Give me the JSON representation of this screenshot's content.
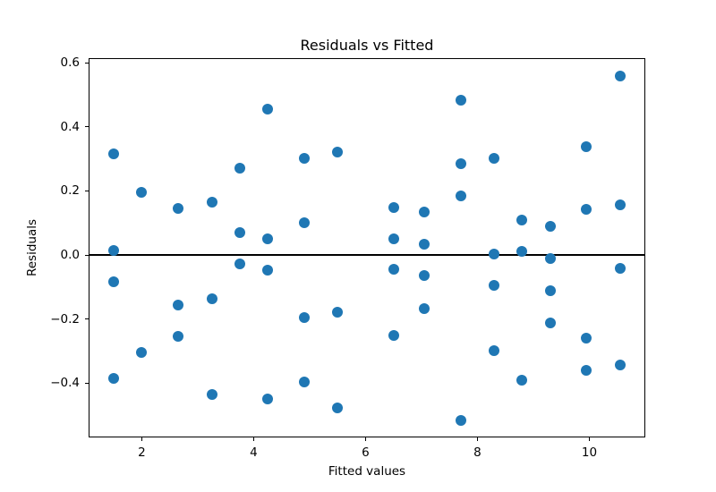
{
  "figure": {
    "background": "#ffffff"
  },
  "chart_data": {
    "type": "scatter",
    "title": "Residuals vs Fitted",
    "xlabel": "Fitted values",
    "ylabel": "Residuals",
    "xlim": [
      1.05,
      11.0
    ],
    "ylim": [
      -0.57,
      0.615
    ],
    "grid": false,
    "legend": false,
    "marker_color": "#1f77b4",
    "axis_color": "#000000",
    "hline_y": 0,
    "xticks": [
      {
        "v": 2,
        "label": "2"
      },
      {
        "v": 4,
        "label": "4"
      },
      {
        "v": 6,
        "label": "6"
      },
      {
        "v": 8,
        "label": "8"
      },
      {
        "v": 10,
        "label": "10"
      }
    ],
    "yticks": [
      {
        "v": 0.6,
        "label": "0.6"
      },
      {
        "v": 0.4,
        "label": "0.4"
      },
      {
        "v": 0.2,
        "label": "0.2"
      },
      {
        "v": 0.0,
        "label": "0.0"
      },
      {
        "v": -0.2,
        "label": "−0.2"
      },
      {
        "v": -0.4,
        "label": "−0.4"
      }
    ],
    "points": [
      [
        1.5,
        0.315
      ],
      [
        1.5,
        0.015
      ],
      [
        1.5,
        -0.085
      ],
      [
        1.5,
        -0.385
      ],
      [
        2.0,
        0.197
      ],
      [
        2.0,
        -0.305
      ],
      [
        2.65,
        0.146
      ],
      [
        2.65,
        -0.155
      ],
      [
        2.65,
        -0.253
      ],
      [
        3.25,
        0.166
      ],
      [
        3.25,
        -0.136
      ],
      [
        3.25,
        -0.437
      ],
      [
        3.75,
        0.272
      ],
      [
        3.75,
        0.069
      ],
      [
        3.75,
        -0.029
      ],
      [
        4.25,
        0.455
      ],
      [
        4.25,
        0.051
      ],
      [
        4.25,
        -0.047
      ],
      [
        4.25,
        -0.449
      ],
      [
        4.9,
        0.301
      ],
      [
        4.9,
        0.1
      ],
      [
        4.9,
        -0.196
      ],
      [
        4.9,
        -0.397
      ],
      [
        5.5,
        0.322
      ],
      [
        5.5,
        -0.178
      ],
      [
        5.5,
        -0.479
      ],
      [
        6.5,
        0.149
      ],
      [
        6.5,
        0.051
      ],
      [
        6.5,
        -0.044
      ],
      [
        6.5,
        -0.251
      ],
      [
        7.05,
        0.133
      ],
      [
        7.05,
        0.034
      ],
      [
        7.05,
        -0.065
      ],
      [
        7.05,
        -0.167
      ],
      [
        7.7,
        0.485
      ],
      [
        7.7,
        0.284
      ],
      [
        7.7,
        0.184
      ],
      [
        7.7,
        -0.517
      ],
      [
        8.3,
        0.303
      ],
      [
        8.3,
        0.004
      ],
      [
        8.3,
        -0.096
      ],
      [
        8.3,
        -0.299
      ],
      [
        8.8,
        0.11
      ],
      [
        8.8,
        0.011
      ],
      [
        8.8,
        -0.39
      ],
      [
        9.3,
        0.09
      ],
      [
        9.3,
        -0.01
      ],
      [
        9.3,
        -0.111
      ],
      [
        9.3,
        -0.211
      ],
      [
        9.95,
        0.338
      ],
      [
        9.95,
        0.142
      ],
      [
        9.95,
        -0.259
      ],
      [
        9.95,
        -0.359
      ],
      [
        10.55,
        0.559
      ],
      [
        10.55,
        0.157
      ],
      [
        10.55,
        -0.041
      ],
      [
        10.55,
        -0.344
      ]
    ]
  }
}
